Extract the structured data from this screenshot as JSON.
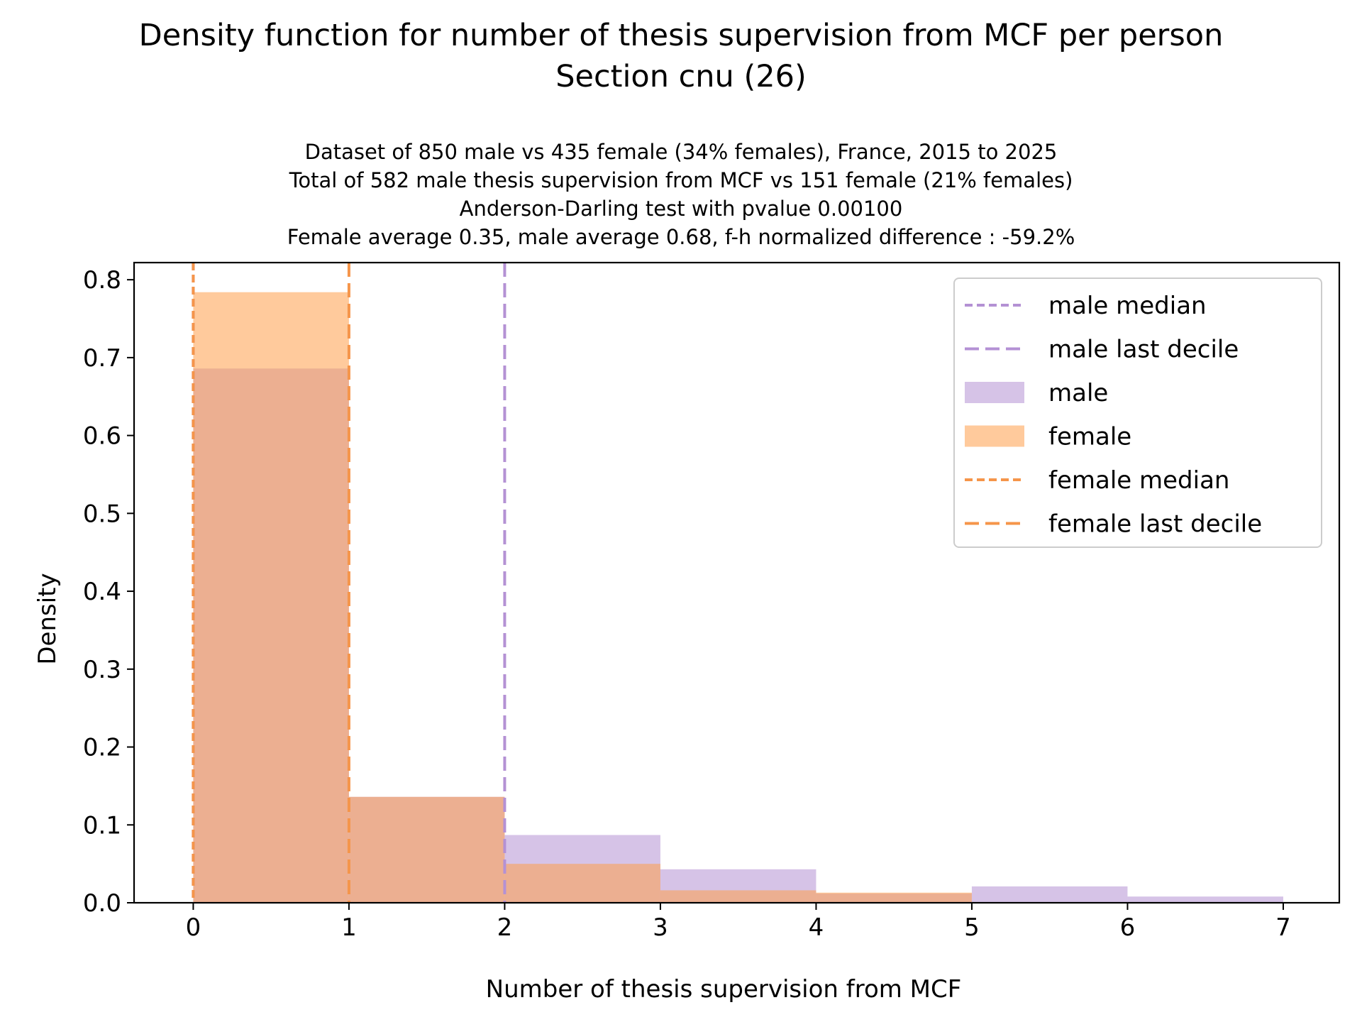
{
  "chart_data": {
    "type": "bar",
    "title": "Density function for number of thesis supervision from MCF per person",
    "title_line2": "Section cnu (26)",
    "subtitle_lines": [
      "Dataset of 850 male vs 435 female (34% females), France, 2015 to 2025",
      "Total of 582 male thesis supervision from MCF vs 151 female (21% females)",
      "Anderson-Darling test with pvalue 0.00100",
      "Female average 0.35, male average 0.68, f-h normalized difference : -59.2%"
    ],
    "xlabel": "Number of thesis supervision from MCF",
    "ylabel": "Density",
    "xlim": [
      -0.38,
      7.36
    ],
    "ylim": [
      0,
      0.822
    ],
    "xticks": [
      "0",
      "1",
      "2",
      "3",
      "4",
      "5",
      "6",
      "7"
    ],
    "yticks": [
      "0.0",
      "0.1",
      "0.2",
      "0.3",
      "0.4",
      "0.5",
      "0.6",
      "0.7",
      "0.8"
    ],
    "bin_edges": [
      0,
      1,
      2,
      3,
      4,
      5,
      6,
      7
    ],
    "series": [
      {
        "name": "male",
        "color": "#b491d4",
        "values": [
          0.686,
          0.136,
          0.087,
          0.043,
          0.012,
          0.021,
          0.008
        ]
      },
      {
        "name": "female",
        "color": "#ff9e4a",
        "values": [
          0.784,
          0.136,
          0.05,
          0.016,
          0.013,
          0.0,
          0.0
        ]
      }
    ],
    "vlines": [
      {
        "name": "male median",
        "x": 0,
        "color": "#b491d4"
      },
      {
        "name": "male last decile",
        "x": 2,
        "color": "#b491d4"
      },
      {
        "name": "female median",
        "x": 0,
        "color": "#f5954a"
      },
      {
        "name": "female last decile",
        "x": 1,
        "color": "#f5954a"
      }
    ],
    "legend": {
      "placement": "top-right",
      "entries": [
        "male median",
        "male last decile",
        "male",
        "female",
        "female median",
        "female last decile"
      ]
    }
  }
}
